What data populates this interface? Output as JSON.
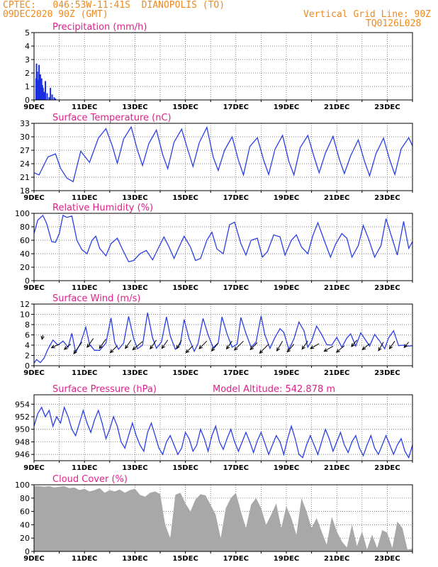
{
  "header": {
    "left_line1": "CPTEC:   046:53W-11:41S  DIANOPOLIS (TO)",
    "left_line2": "09DEC2020 90Z (GMT)",
    "right_line1": "Vertical Grid Line: 90Z",
    "right_line2": "TQ0126L028"
  },
  "colors": {
    "header": "#ee8a20",
    "title": "#e0208a",
    "line": "#2a3fe6",
    "bar": "#1a2fe0",
    "cloud": "#a8a8a8",
    "grid": "#555555"
  },
  "chart_data": [
    {
      "type": "bar",
      "title": "Precipitation (mm/h)",
      "ylim": [
        0,
        5
      ],
      "yticks": [
        0,
        1,
        2,
        3,
        4,
        5
      ],
      "xtick_labels": [
        "9DEC",
        "11DEC",
        "13DEC",
        "15DEC",
        "17DEC",
        "19DEC",
        "21DEC",
        "23DEC"
      ],
      "x_unit": "days since 09DEC2020",
      "x": [
        0.08,
        0.1,
        0.13,
        0.17,
        0.2,
        0.23,
        0.25,
        0.27,
        0.3,
        0.33,
        0.36,
        0.4,
        0.45,
        0.52,
        0.6,
        0.65,
        0.72,
        0.8,
        0.85
      ],
      "values": [
        1.6,
        2.7,
        2.1,
        1.5,
        2.6,
        1.3,
        1.9,
        1.0,
        1.6,
        1.1,
        0.9,
        0.6,
        1.4,
        0.5,
        0.2,
        0.9,
        0.4,
        0.2,
        0.1
      ]
    },
    {
      "type": "line",
      "title": "Surface Temperature (nC)",
      "ylim": [
        18,
        33
      ],
      "yticks": [
        18,
        21,
        24,
        27,
        30,
        33
      ],
      "xtick_labels": [
        "9DEC",
        "11DEC",
        "13DEC",
        "15DEC",
        "17DEC",
        "19DEC",
        "21DEC",
        "23DEC"
      ],
      "x_unit": "days since 09DEC2020",
      "x": [
        0,
        0.2,
        0.55,
        0.85,
        1.05,
        1.3,
        1.55,
        1.85,
        2.2,
        2.55,
        2.85,
        3.1,
        3.3,
        3.55,
        3.85,
        4.1,
        4.3,
        4.55,
        4.85,
        5.1,
        5.3,
        5.55,
        5.85,
        6.1,
        6.3,
        6.55,
        6.85,
        7.1,
        7.3,
        7.55,
        7.85,
        8.1,
        8.3,
        8.55,
        8.85,
        9.1,
        9.3,
        9.55,
        9.85,
        10.1,
        10.3,
        10.55,
        10.85,
        11.1,
        11.3,
        11.55,
        11.85,
        12.1,
        12.3,
        12.55,
        12.85,
        13.1,
        13.3,
        13.55,
        13.85,
        14.1,
        14.3,
        14.55,
        14.85,
        15.0
      ],
      "values": [
        22,
        21.5,
        25.5,
        26.2,
        23,
        20.8,
        20,
        26.8,
        24.3,
        29.7,
        31.8,
        28,
        24.1,
        29.5,
        32.2,
        27,
        23.6,
        28.5,
        31.5,
        26,
        22.9,
        28.8,
        31.7,
        27,
        23.4,
        28.7,
        32.1,
        25.5,
        22.5,
        27,
        30,
        24.8,
        21.5,
        27.8,
        29.8,
        24.8,
        21.6,
        27.2,
        30.3,
        24.5,
        21.5,
        27.6,
        30.3,
        25.5,
        22,
        26.4,
        30.1,
        25,
        21.8,
        25.8,
        29.3,
        24.5,
        21.3,
        26.2,
        29.7,
        24.8,
        21.6,
        27.3,
        29.8,
        28
      ]
    },
    {
      "type": "line",
      "title": "Relative Humidity (%)",
      "ylim": [
        0,
        100
      ],
      "yticks": [
        0,
        20,
        40,
        60,
        80,
        100
      ],
      "xtick_labels": [
        "9DEC",
        "11DEC",
        "13DEC",
        "15DEC",
        "17DEC",
        "19DEC",
        "21DEC",
        "23DEC"
      ],
      "x_unit": "days since 09DEC2020",
      "x": [
        0,
        0.15,
        0.35,
        0.5,
        0.7,
        0.85,
        1.0,
        1.15,
        1.3,
        1.5,
        1.7,
        1.9,
        2.1,
        2.3,
        2.45,
        2.6,
        2.85,
        3.05,
        3.3,
        3.5,
        3.75,
        3.95,
        4.2,
        4.45,
        4.7,
        4.95,
        5.15,
        5.35,
        5.55,
        5.75,
        5.95,
        6.2,
        6.4,
        6.6,
        6.85,
        7.05,
        7.25,
        7.5,
        7.75,
        7.95,
        8.2,
        8.4,
        8.6,
        8.85,
        9.05,
        9.25,
        9.5,
        9.75,
        9.95,
        10.2,
        10.4,
        10.6,
        10.85,
        11.05,
        11.25,
        11.5,
        11.75,
        11.95,
        12.2,
        12.4,
        12.6,
        12.85,
        13.05,
        13.25,
        13.5,
        13.75,
        13.95,
        14.2,
        14.4,
        14.65,
        14.85,
        15.0
      ],
      "values": [
        70,
        90,
        97,
        85,
        58,
        57,
        70,
        97,
        94,
        96,
        60,
        46,
        40,
        60,
        66,
        48,
        37,
        55,
        63,
        47,
        28,
        30,
        40,
        45,
        31,
        50,
        65,
        50,
        33,
        50,
        66,
        50,
        30,
        33,
        60,
        72,
        47,
        40,
        83,
        87,
        55,
        38,
        60,
        63,
        35,
        43,
        68,
        65,
        38,
        60,
        68,
        50,
        40,
        67,
        86,
        60,
        35,
        54,
        70,
        63,
        35,
        52,
        82,
        63,
        35,
        52,
        92,
        62,
        38,
        88,
        48,
        58
      ]
    },
    {
      "type": "line",
      "title": "Surface Wind (m/s)",
      "ylim": [
        0,
        12
      ],
      "yticks": [
        0,
        2,
        4,
        6,
        8,
        10,
        12
      ],
      "xtick_labels": [
        "9DEC",
        "11DEC",
        "13DEC",
        "15DEC",
        "17DEC",
        "19DEC",
        "21DEC",
        "23DEC"
      ],
      "x_unit": "days since 09DEC2020",
      "x": [
        0,
        0.1,
        0.25,
        0.4,
        0.55,
        0.75,
        0.95,
        1.15,
        1.35,
        1.5,
        1.65,
        1.85,
        2.05,
        2.2,
        2.4,
        2.6,
        2.85,
        3.05,
        3.2,
        3.35,
        3.55,
        3.75,
        3.95,
        4.1,
        4.3,
        4.5,
        4.7,
        4.85,
        5.05,
        5.25,
        5.4,
        5.6,
        5.8,
        5.95,
        6.15,
        6.35,
        6.5,
        6.7,
        6.9,
        7.1,
        7.3,
        7.45,
        7.65,
        7.85,
        8.05,
        8.2,
        8.4,
        8.6,
        8.8,
        9.0,
        9.15,
        9.35,
        9.55,
        9.75,
        9.9,
        10.1,
        10.3,
        10.5,
        10.7,
        10.85,
        11.0,
        11.2,
        11.4,
        11.6,
        11.8,
        12.0,
        12.2,
        12.4,
        12.55,
        12.75,
        12.95,
        13.1,
        13.3,
        13.5,
        13.7,
        13.9,
        14.05,
        14.25,
        14.45,
        14.65,
        14.85,
        15.0
      ],
      "values": [
        0.5,
        1.2,
        0.6,
        1.5,
        3.2,
        5,
        4,
        4.8,
        3.6,
        6.3,
        2.6,
        4.5,
        7.5,
        4.2,
        3,
        3,
        4.4,
        9.3,
        4.5,
        3.2,
        4.4,
        9.6,
        5.3,
        3.3,
        4,
        10.3,
        5.4,
        3.4,
        4.6,
        9.5,
        5.8,
        3.2,
        4.2,
        9,
        5.2,
        2.8,
        4.3,
        9.2,
        6,
        3.5,
        4.4,
        9.5,
        6.2,
        3.6,
        4.2,
        9.4,
        6.3,
        3.6,
        4.6,
        9.7,
        6,
        3.4,
        5.5,
        7.2,
        6.5,
        3.2,
        5.2,
        8.5,
        6.8,
        3.6,
        4.8,
        7.7,
        6.1,
        4.1,
        4,
        5.5,
        3.6,
        5.4,
        6.2,
        3.8,
        6.4,
        5.3,
        3.8,
        6.1,
        4.8,
        3.3,
        5.4,
        6.8,
        3.9,
        4,
        3.8,
        3.9
      ],
      "barbs": [
        {
          "x": 0.35,
          "y": 6,
          "speed": 1.6,
          "dir_deg": 80
        },
        {
          "x": 1.0,
          "y": 4.2,
          "speed": 3.0,
          "dir_deg": 25
        },
        {
          "x": 1.45,
          "y": 4.2,
          "speed": 2.9,
          "dir_deg": 40
        },
        {
          "x": 1.9,
          "y": 4.6,
          "speed": 5.0,
          "dir_deg": 55
        },
        {
          "x": 2.35,
          "y": 5.3,
          "speed": 3.8,
          "dir_deg": 55
        },
        {
          "x": 2.85,
          "y": 5.2,
          "speed": 4.0,
          "dir_deg": 55
        },
        {
          "x": 3.3,
          "y": 3.9,
          "speed": 3.5,
          "dir_deg": 45
        },
        {
          "x": 3.85,
          "y": 5,
          "speed": 3.6,
          "dir_deg": 55
        },
        {
          "x": 4.3,
          "y": 4.7,
          "speed": 4.5,
          "dir_deg": 40
        },
        {
          "x": 4.85,
          "y": 5,
          "speed": 3.8,
          "dir_deg": 55
        },
        {
          "x": 5.3,
          "y": 5,
          "speed": 3.6,
          "dir_deg": 55
        },
        {
          "x": 5.85,
          "y": 5,
          "speed": 3.5,
          "dir_deg": 60
        },
        {
          "x": 6.3,
          "y": 3.9,
          "speed": 3.5,
          "dir_deg": 45
        },
        {
          "x": 6.85,
          "y": 4.8,
          "speed": 3.8,
          "dir_deg": 45
        },
        {
          "x": 7.3,
          "y": 4.4,
          "speed": 3.6,
          "dir_deg": 50
        },
        {
          "x": 7.85,
          "y": 4.8,
          "speed": 3.4,
          "dir_deg": 55
        },
        {
          "x": 8.3,
          "y": 4.8,
          "speed": 4.5,
          "dir_deg": 45
        },
        {
          "x": 8.85,
          "y": 4.5,
          "speed": 3.5,
          "dir_deg": 45
        },
        {
          "x": 9.3,
          "y": 4.2,
          "speed": 4.5,
          "dir_deg": 45
        },
        {
          "x": 9.85,
          "y": 4.8,
          "speed": 4.0,
          "dir_deg": 60
        },
        {
          "x": 10.3,
          "y": 4.2,
          "speed": 3.6,
          "dir_deg": 50
        },
        {
          "x": 10.85,
          "y": 4.8,
          "speed": 3.5,
          "dir_deg": 55
        },
        {
          "x": 11.3,
          "y": 4.3,
          "speed": 3.5,
          "dir_deg": 30
        },
        {
          "x": 11.85,
          "y": 3.8,
          "speed": 3.6,
          "dir_deg": 30
        },
        {
          "x": 12.3,
          "y": 3.9,
          "speed": 3.6,
          "dir_deg": 40
        },
        {
          "x": 12.8,
          "y": 5,
          "speed": 3.0,
          "dir_deg": 50
        },
        {
          "x": 13.3,
          "y": 4.3,
          "speed": 3.3,
          "dir_deg": 40
        },
        {
          "x": 13.85,
          "y": 4.6,
          "speed": 3.5,
          "dir_deg": 60
        },
        {
          "x": 14.3,
          "y": 4.8,
          "speed": 3.3,
          "dir_deg": 55
        },
        {
          "x": 14.85,
          "y": 4.6,
          "speed": 2.5,
          "dir_deg": 50
        }
      ]
    },
    {
      "type": "line",
      "title": "Surface Pressure (hPa)",
      "annotation": "Model Altitude: 542.878 m",
      "ylim": [
        945,
        955.5
      ],
      "yticks": [
        946,
        948,
        950,
        952,
        954
      ],
      "xtick_labels": [
        "9DEC",
        "11DEC",
        "13DEC",
        "15DEC",
        "17DEC",
        "19DEC",
        "21DEC",
        "23DEC"
      ],
      "x_unit": "days since 09DEC2020",
      "x": [
        0,
        0.15,
        0.3,
        0.45,
        0.6,
        0.75,
        0.9,
        1.05,
        1.2,
        1.35,
        1.5,
        1.65,
        1.8,
        1.95,
        2.1,
        2.25,
        2.4,
        2.55,
        2.7,
        2.85,
        3.0,
        3.15,
        3.3,
        3.45,
        3.6,
        3.75,
        3.9,
        4.05,
        4.2,
        4.35,
        4.5,
        4.65,
        4.8,
        4.95,
        5.1,
        5.25,
        5.4,
        5.55,
        5.7,
        5.85,
        6.0,
        6.15,
        6.3,
        6.45,
        6.6,
        6.75,
        6.9,
        7.05,
        7.2,
        7.35,
        7.5,
        7.65,
        7.8,
        7.95,
        8.1,
        8.25,
        8.4,
        8.55,
        8.7,
        8.85,
        9.0,
        9.15,
        9.3,
        9.45,
        9.6,
        9.75,
        9.9,
        10.05,
        10.2,
        10.35,
        10.5,
        10.65,
        10.8,
        10.95,
        11.1,
        11.25,
        11.4,
        11.55,
        11.7,
        11.85,
        12.0,
        12.15,
        12.3,
        12.45,
        12.6,
        12.75,
        12.9,
        13.05,
        13.2,
        13.35,
        13.5,
        13.65,
        13.8,
        13.95,
        14.1,
        14.25,
        14.4,
        14.55,
        14.7,
        14.85,
        15.0
      ],
      "values": [
        950.5,
        952.5,
        953.5,
        952,
        953,
        950.5,
        952,
        951,
        953.5,
        952,
        950,
        949,
        951,
        953,
        951,
        949.5,
        951.5,
        953,
        951,
        948.5,
        950,
        952,
        950.5,
        948,
        947,
        949,
        951,
        949,
        947.5,
        946.5,
        949.5,
        951,
        949,
        947,
        946,
        948,
        949,
        947.5,
        946,
        947,
        949.5,
        948.5,
        946.5,
        947.5,
        950,
        948.5,
        946.5,
        949,
        950.5,
        948,
        946.8,
        948.5,
        950,
        948,
        946.5,
        948,
        949.5,
        948,
        946.3,
        948.2,
        949.5,
        947.8,
        946,
        947.5,
        949,
        948,
        946,
        948.5,
        950.5,
        948.5,
        946,
        945.5,
        947.5,
        949,
        947.5,
        946,
        948,
        950,
        948.5,
        946.5,
        948,
        949.5,
        947.5,
        946.3,
        948,
        949,
        947,
        945.8,
        947.5,
        949,
        947,
        946,
        947.5,
        949,
        947.5,
        946,
        947.5,
        948.5,
        946.5,
        945.5,
        947.5
      ]
    },
    {
      "type": "area",
      "title": "Cloud Cover (%)",
      "ylim": [
        0,
        100
      ],
      "yticks": [
        0,
        20,
        40,
        60,
        80,
        100
      ],
      "xtick_labels": [
        "9DEC",
        "11DEC",
        "13DEC",
        "15DEC",
        "17DEC",
        "19DEC",
        "21DEC",
        "23DEC"
      ],
      "x_unit": "days since 09DEC2020",
      "x": [
        0,
        0.2,
        0.4,
        0.6,
        0.8,
        1.0,
        1.2,
        1.4,
        1.6,
        1.8,
        2.0,
        2.2,
        2.4,
        2.6,
        2.8,
        3.0,
        3.2,
        3.4,
        3.6,
        3.8,
        4.0,
        4.2,
        4.4,
        4.6,
        4.8,
        5.0,
        5.2,
        5.4,
        5.6,
        5.8,
        6.0,
        6.2,
        6.4,
        6.6,
        6.8,
        7.0,
        7.2,
        7.4,
        7.6,
        7.8,
        8.0,
        8.2,
        8.4,
        8.6,
        8.8,
        9.0,
        9.2,
        9.4,
        9.6,
        9.8,
        10.0,
        10.2,
        10.4,
        10.6,
        10.8,
        11.0,
        11.2,
        11.4,
        11.6,
        11.8,
        12.0,
        12.2,
        12.4,
        12.6,
        12.8,
        13.0,
        13.2,
        13.4,
        13.6,
        13.8,
        14.0,
        14.2,
        14.4,
        14.6,
        14.8,
        15.0
      ],
      "values": [
        98,
        98,
        97,
        98,
        96,
        97,
        98,
        95,
        96,
        92,
        94,
        90,
        92,
        95,
        88,
        92,
        90,
        93,
        88,
        92,
        94,
        85,
        82,
        88,
        90,
        86,
        40,
        20,
        85,
        88,
        72,
        60,
        78,
        86,
        84,
        70,
        55,
        20,
        65,
        80,
        88,
        60,
        35,
        70,
        80,
        65,
        40,
        55,
        72,
        35,
        68,
        50,
        25,
        80,
        60,
        35,
        50,
        30,
        10,
        52,
        30,
        15,
        6,
        40,
        8,
        30,
        3,
        25,
        5,
        32,
        28,
        5,
        45,
        35,
        3,
        4
      ]
    }
  ]
}
